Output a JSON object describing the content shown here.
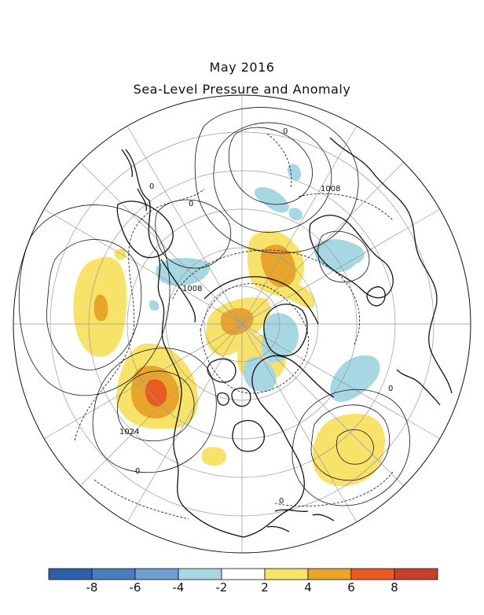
{
  "title": "May 2016",
  "subtitle": "Sea-Level Pressure and Anomaly",
  "contour_labels": [
    "0",
    "0",
    "0",
    "1008",
    "1008",
    "1024",
    "0",
    "0",
    "0"
  ],
  "colorbar": {
    "colors": [
      "#2e5fa8",
      "#4a7cc0",
      "#6e9ed3",
      "#a6d7e3",
      "#ffffff",
      "#f7e26a",
      "#e8a52c",
      "#ea5a23",
      "#c9402a"
    ],
    "tick_labels": [
      "-8",
      "-6",
      "-4",
      "-2",
      "2",
      "4",
      "6",
      "8"
    ]
  },
  "colors": {
    "positive_light": "#f7e26a",
    "positive_mid": "#e8a52c",
    "positive_high": "#ea5a23",
    "negative_light": "#a6d7e3"
  }
}
